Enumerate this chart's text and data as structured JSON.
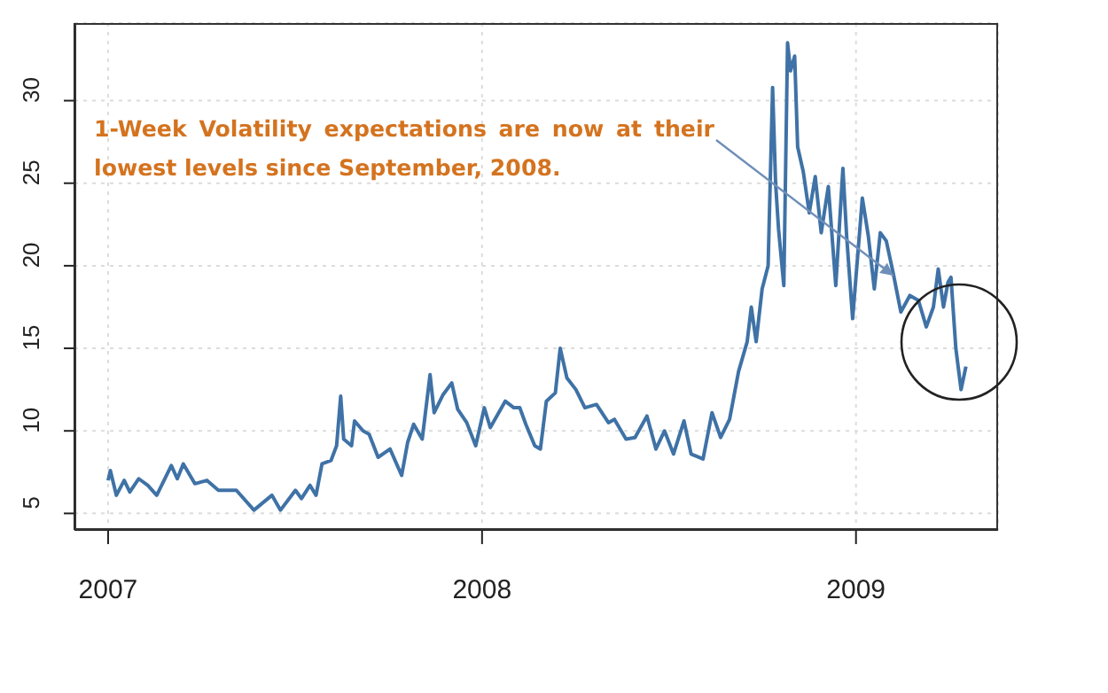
{
  "chart_data": {
    "type": "line",
    "x": [
      2007.0,
      2007.006,
      2007.022,
      2007.043,
      2007.058,
      2007.082,
      2007.106,
      2007.13,
      2007.169,
      2007.185,
      2007.201,
      2007.232,
      2007.264,
      2007.295,
      2007.343,
      2007.39,
      2007.438,
      2007.461,
      2007.501,
      2007.517,
      2007.54,
      2007.556,
      2007.572,
      2007.596,
      2007.611,
      2007.622,
      2007.63,
      2007.651,
      2007.659,
      2007.682,
      2007.698,
      2007.722,
      2007.754,
      2007.785,
      2007.801,
      2007.817,
      2007.84,
      2007.861,
      2007.872,
      2007.896,
      2007.919,
      2007.935,
      2007.959,
      2007.983,
      2008.006,
      2008.022,
      2008.062,
      2008.085,
      2008.101,
      2008.117,
      2008.141,
      2008.156,
      2008.172,
      2008.196,
      2008.209,
      2008.227,
      2008.251,
      2008.275,
      2008.306,
      2008.338,
      2008.354,
      2008.385,
      2008.409,
      2008.441,
      2008.465,
      2008.488,
      2008.512,
      2008.54,
      2008.559,
      2008.591,
      2008.615,
      2008.638,
      2008.662,
      2008.686,
      2008.709,
      2008.72,
      2008.733,
      2008.749,
      2008.765,
      2008.777,
      2008.785,
      2008.793,
      2008.807,
      2008.817,
      2008.825,
      2008.836,
      2008.844,
      2008.859,
      2008.875,
      2008.891,
      2008.907,
      2008.926,
      2008.946,
      2008.965,
      2008.975,
      2008.991,
      2009.017,
      2009.033,
      2009.049,
      2009.065,
      2009.081,
      2009.1,
      2009.12,
      2009.144,
      2009.167,
      2009.188,
      2009.207,
      2009.22,
      2009.234,
      2009.246,
      2009.254,
      2009.267,
      2009.281,
      2009.294
    ],
    "series": [
      {
        "color": "#3f72a6",
        "values": [
          7.0,
          7.6,
          6.1,
          7.0,
          6.3,
          7.1,
          6.7,
          6.1,
          7.9,
          7.1,
          8.0,
          6.8,
          7.0,
          6.4,
          6.4,
          5.2,
          6.1,
          5.2,
          6.4,
          5.9,
          6.7,
          6.1,
          8.0,
          8.2,
          9.1,
          12.1,
          9.5,
          9.1,
          10.6,
          10.0,
          9.8,
          8.4,
          8.9,
          7.3,
          9.3,
          10.4,
          9.5,
          13.4,
          11.1,
          12.2,
          12.9,
          11.3,
          10.5,
          9.1,
          11.4,
          10.2,
          11.8,
          11.4,
          11.4,
          10.4,
          9.1,
          8.9,
          11.8,
          12.3,
          15.0,
          13.2,
          12.5,
          11.4,
          11.6,
          10.5,
          10.7,
          9.5,
          9.6,
          10.9,
          8.9,
          10.0,
          8.6,
          10.6,
          8.6,
          8.3,
          11.1,
          9.6,
          10.7,
          13.6,
          15.4,
          17.5,
          15.4,
          18.6,
          20.0,
          30.8,
          25.0,
          22.2,
          18.8,
          33.5,
          31.8,
          32.7,
          27.2,
          25.7,
          23.2,
          25.4,
          22.0,
          24.8,
          18.8,
          25.9,
          21.8,
          16.8,
          24.1,
          21.8,
          18.6,
          22.0,
          21.5,
          19.5,
          17.2,
          18.2,
          17.9,
          16.3,
          17.5,
          19.8,
          17.5,
          19.0,
          19.3,
          15.0,
          12.5,
          13.9
        ]
      }
    ],
    "xlim": [
      2006.91,
      2009.38
    ],
    "xticks": [
      2007,
      2008,
      2009
    ],
    "ylim": [
      4.0,
      34.7
    ],
    "yticks": [
      5,
      10,
      15,
      20,
      25,
      30
    ],
    "grid": true,
    "marker": "none",
    "line_style": "solid",
    "annotations": [
      {
        "text": "1-Week Volatility expectations are now at their lowest levels since September, 2008.",
        "x": 2009.1,
        "y": 19.4
      }
    ]
  }
}
